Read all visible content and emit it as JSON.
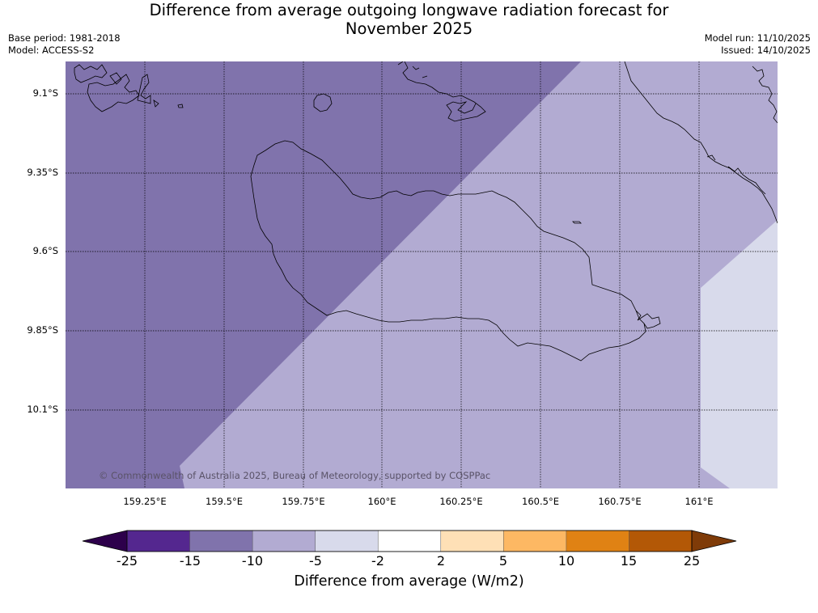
{
  "title": {
    "line1": "Difference from average outgoing longwave radiation forecast for",
    "line2": "November 2025"
  },
  "meta": {
    "base_period": "Base period: 1981-2018",
    "model": "Model: ACCESS-S2",
    "model_run": "Model run: 11/10/2025",
    "issued": "Issued: 14/10/2025"
  },
  "axes": {
    "latitudes": [
      "9.1°S",
      "9.35°S",
      "9.6°S",
      "9.85°S",
      "10.1°S"
    ],
    "longitudes": [
      "159.25°E",
      "159.5°E",
      "159.75°E",
      "160°E",
      "160.25°E",
      "160.5°E",
      "160.75°E",
      "161°E"
    ]
  },
  "copyright": "© Commonwealth of Australia 2025, Bureau of Meteorology, supported by COSPPac",
  "colorbar": {
    "ticks": [
      "-25",
      "-15",
      "-10",
      "-5",
      "-2",
      "2",
      "5",
      "10",
      "15",
      "25"
    ],
    "colors": [
      "#54278f",
      "#8073ac",
      "#b2abd2",
      "#d8daeb",
      "#ffffff",
      "#fee0b6",
      "#fdb863",
      "#e08214",
      "#b35806"
    ],
    "under_color": "#2d004b",
    "over_color": "#7f3b08",
    "label": "Difference from average (W/m2)"
  },
  "regions": [
    {
      "name": "-15 to -10",
      "color": "#8073ac"
    },
    {
      "name": "-10 to -5",
      "color": "#b2abd2"
    },
    {
      "name": "-5 to -2",
      "color": "#d8daeb"
    }
  ]
}
